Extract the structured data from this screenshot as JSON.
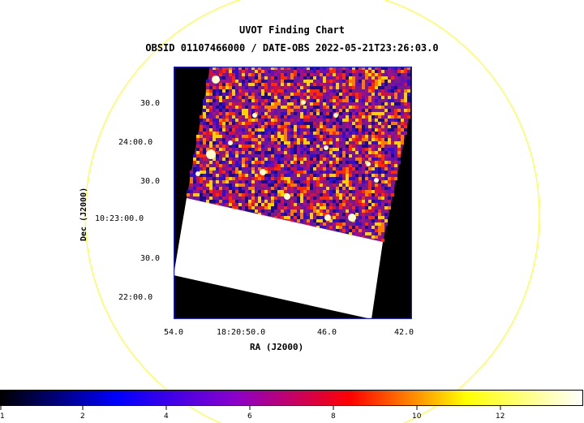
{
  "title": "UVOT Finding Chart",
  "subtitle": "OBSID 01107466000 / DATE-OBS 2022-05-21T23:26:03.0",
  "axes": {
    "y_label": "Dec (J2000)",
    "x_label": "RA (J2000)",
    "y_ticks": [
      "30.0",
      "24:00.0",
      "30.0",
      "10:23:00.0",
      "30.0",
      "22:00.0"
    ],
    "x_ticks": [
      "54.0",
      "18:20:50.0",
      "46.0",
      "42.0"
    ]
  },
  "colorbar": {
    "ticks": [
      "1",
      "2",
      "4",
      "6",
      "8",
      "10",
      "12"
    ]
  },
  "colors": {
    "circle": "#ffff33",
    "frame": "#2222cc",
    "background": "#000000",
    "saturated": "#ffffff"
  },
  "colormap_stops": [
    "#000000",
    "#0000ff",
    "#8800cc",
    "#ff0000",
    "#ffff00",
    "#ffffff"
  ]
}
